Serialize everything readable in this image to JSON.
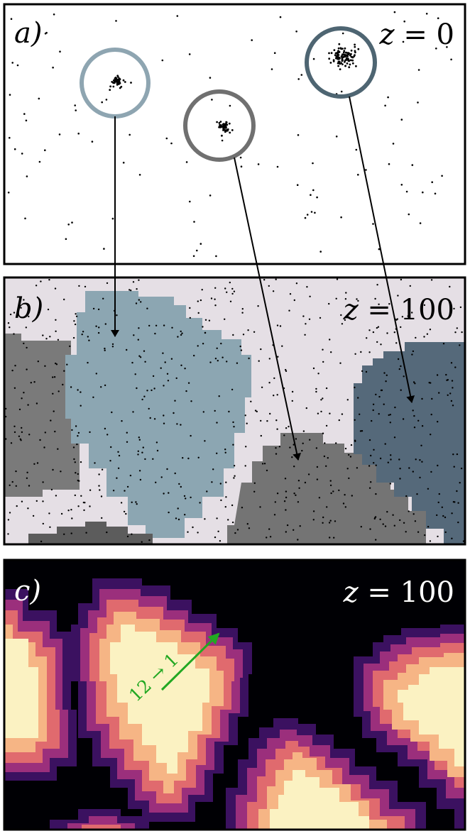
{
  "panels": [
    {
      "id": "a",
      "label": "a)",
      "z_var": "z",
      "z_value": "= 0"
    },
    {
      "id": "b",
      "label": "b)",
      "z_var": "z",
      "z_value": "= 100"
    },
    {
      "id": "c",
      "label": "c)",
      "z_var": "z",
      "z_value": "= 100"
    }
  ],
  "annotation": "12 → 1",
  "colors": {
    "region_light": "#8ca6b2",
    "region_mid": "#747474",
    "region_dark": "#55697a",
    "region_gray": "#7a7a7a",
    "background_b": "#e5dfe5",
    "annotation_arrow": "#22a822"
  }
}
